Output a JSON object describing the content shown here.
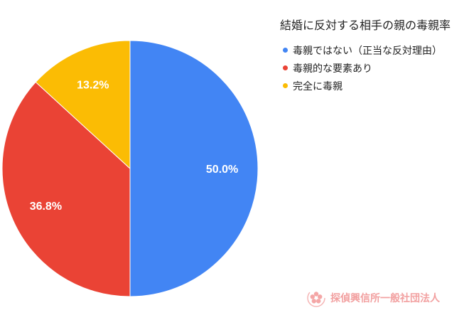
{
  "chart_data": {
    "type": "pie",
    "title": "結婚に反対する相手の親の毒親率",
    "categories": [
      "毒親ではない（正当な反対理由）",
      "毒親的な要素あり",
      "完全に毒親"
    ],
    "values": [
      50.0,
      36.8,
      13.2
    ],
    "value_labels": [
      "50.0%",
      "36.8%",
      "13.2%"
    ],
    "colors": [
      "#4285f4",
      "#ea4335",
      "#fbbc04"
    ],
    "start_angle": "12 o'clock",
    "direction": "clockwise",
    "legend_position": "top-right"
  },
  "watermark": {
    "text": "探偵興信所一般社団法人",
    "icon": "cherry-blossom-logo"
  }
}
